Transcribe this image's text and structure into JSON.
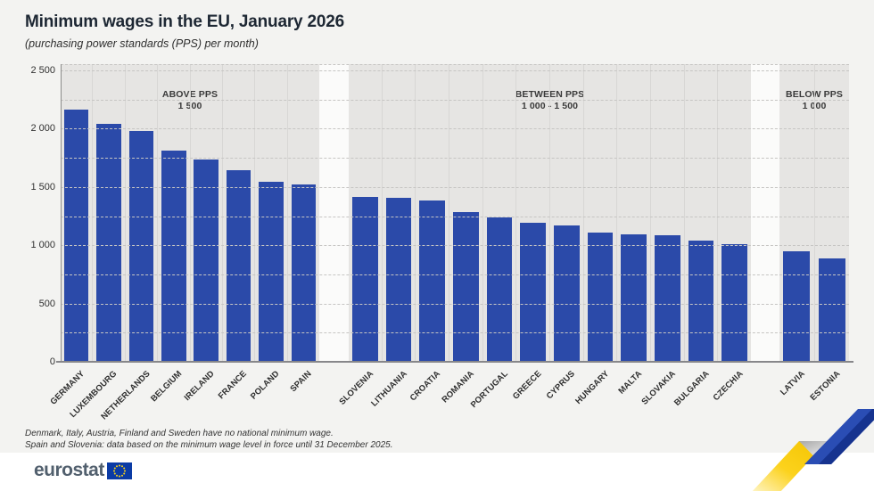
{
  "page": {
    "title": "Minimum wages in the EU, January 2026",
    "subtitle": "(purchasing power standards (PPS) per month)",
    "footnotes": [
      "Denmark, Italy, Austria, Finland and Sweden have no national minimum wage.",
      "Spain and Slovenia: data based on the minimum wage level in force until 31 December 2025."
    ],
    "brand": {
      "logo_text": "eurostat"
    }
  },
  "colors": {
    "bar": "#2b4aa9",
    "page_bg": "#f3f3f1",
    "panel_bg": "#e6e5e3",
    "gap_bg": "#fbfbfa",
    "title_text": "#1d2733",
    "grid": "#c6c5c3",
    "axis": "#8c8c8a",
    "logo_text_color": "#52606e",
    "eu_flag_blue": "#0b3ba5",
    "eu_star_yellow": "#ffd617",
    "ribbon_yellow": "#f8c900",
    "ribbon_blue": "#2a4db4",
    "ribbon_blue_dark": "#16338f"
  },
  "y_axis": {
    "tick_labels": [
      "2 500",
      "2 000",
      "1 500",
      "1 000",
      "500",
      "0"
    ],
    "tick_values": [
      2500,
      2000,
      1500,
      1000,
      500,
      0
    ],
    "grid_step": 250,
    "max": 2500
  },
  "chart_data": {
    "type": "bar",
    "title": "Minimum wages in the EU, January 2026",
    "subtitle": "(purchasing power standards (PPS) per month)",
    "xlabel": "",
    "ylabel": "PPS per month",
    "ylim": [
      0,
      2500
    ],
    "grid": "horizontal dashed every 250",
    "legend": null,
    "groups": [
      {
        "label_line1": "ABOVE PPS",
        "label_line2": "1 500",
        "categories": [
          "GERMANY",
          "LUXEMBOURG",
          "NETHERLANDS",
          "BELGIUM",
          "IRELAND",
          "FRANCE",
          "POLAND",
          "SPAIN"
        ],
        "values": [
          2165,
          2040,
          1980,
          1815,
          1735,
          1645,
          1545,
          1520
        ]
      },
      {
        "label_line1": "BETWEEN PPS",
        "label_line2": "1 000 - 1 500",
        "categories": [
          "SLOVENIA",
          "LITHUANIA",
          "CROATIA",
          "ROMANIA",
          "PORTUGAL",
          "GREECE",
          "CYPRUS",
          "HUNGARY",
          "MALTA",
          "SLOVAKIA",
          "BULGARIA",
          "CZECHIA"
        ],
        "values": [
          1415,
          1410,
          1380,
          1285,
          1235,
          1190,
          1170,
          1110,
          1090,
          1085,
          1040,
          1010
        ]
      },
      {
        "label_line1": "BELOW PPS",
        "label_line2": "1 000",
        "categories": [
          "LATVIA",
          "ESTONIA"
        ],
        "values": [
          950,
          885
        ]
      }
    ]
  }
}
